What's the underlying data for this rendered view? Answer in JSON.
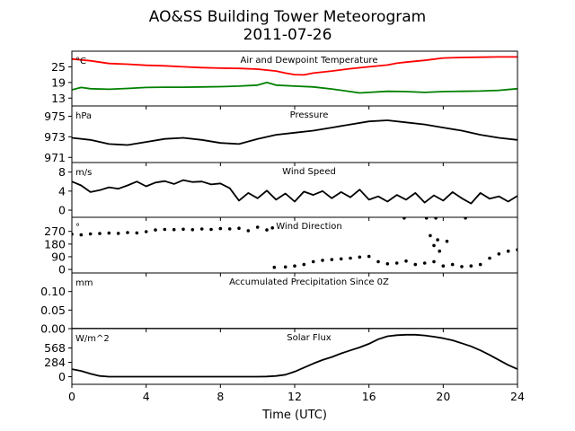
{
  "figure": {
    "title_line1": "AO&SS Building Tower Meteorogram",
    "title_line2": "2011-07-26",
    "xlabel": "Time (UTC)"
  },
  "chart_data": [
    {
      "type": "line",
      "title": "Air and Dewpoint Temperature",
      "unit": "°C",
      "xlim": [
        0,
        24
      ],
      "ylim": [
        10,
        31
      ],
      "yticks": [
        13,
        19,
        25
      ],
      "series": [
        {
          "color": "#ff0000",
          "x": [
            0,
            1,
            2,
            3,
            4,
            5,
            6,
            7,
            8,
            9,
            10,
            11,
            11.5,
            12,
            12.5,
            13,
            14,
            15,
            16,
            17,
            17.5,
            18,
            19,
            20,
            21,
            22,
            23,
            24
          ],
          "values": [
            28.0,
            27.3,
            26.3,
            26.0,
            25.6,
            25.4,
            25.0,
            24.7,
            24.5,
            24.4,
            24.1,
            23.4,
            22.6,
            22.0,
            21.9,
            22.6,
            23.4,
            24.3,
            25.0,
            25.7,
            26.4,
            26.8,
            27.5,
            28.4,
            28.6,
            28.7,
            28.8,
            28.8
          ]
        },
        {
          "color": "#008000",
          "x": [
            0,
            0.5,
            1,
            2,
            3,
            4,
            5,
            6,
            7,
            8,
            9,
            10,
            10.5,
            11,
            12,
            13,
            14,
            15,
            15.5,
            16,
            17,
            18,
            19,
            20,
            21,
            22,
            23,
            23.5,
            24
          ],
          "values": [
            16.2,
            17.1,
            16.6,
            16.4,
            16.7,
            17.1,
            17.2,
            17.2,
            17.3,
            17.4,
            17.6,
            18.0,
            19.0,
            18.0,
            17.6,
            17.3,
            16.5,
            15.5,
            15.0,
            15.2,
            15.6,
            15.5,
            15.2,
            15.5,
            15.6,
            15.7,
            16.0,
            16.3,
            16.6
          ]
        }
      ]
    },
    {
      "type": "line",
      "title": "Pressure",
      "unit": "hPa",
      "xlim": [
        0,
        24
      ],
      "ylim": [
        970.5,
        976.0
      ],
      "yticks": [
        971,
        973,
        975
      ],
      "series": [
        {
          "color": "#000000",
          "x": [
            0,
            1,
            2,
            3,
            4,
            5,
            6,
            7,
            8,
            9,
            10,
            11,
            12,
            13,
            14,
            15,
            16,
            17,
            18,
            19,
            20,
            21,
            22,
            23,
            24
          ],
          "values": [
            972.9,
            972.7,
            972.3,
            972.2,
            972.5,
            972.8,
            972.9,
            972.7,
            972.4,
            972.3,
            972.8,
            973.2,
            973.4,
            973.6,
            973.9,
            974.2,
            974.5,
            974.6,
            974.4,
            974.2,
            973.9,
            973.6,
            973.2,
            972.9,
            972.7
          ]
        }
      ]
    },
    {
      "type": "line",
      "title": "Wind Speed",
      "unit": "m/s",
      "xlim": [
        0,
        24
      ],
      "ylim": [
        -1.5,
        10
      ],
      "yticks": [
        0,
        4,
        8
      ],
      "series": [
        {
          "color": "#000000",
          "x": [
            0,
            0.5,
            1,
            1.5,
            2,
            2.5,
            3,
            3.5,
            4,
            4.5,
            5,
            5.5,
            6,
            6.5,
            7,
            7.5,
            8,
            8.5,
            9,
            9.5,
            10,
            10.5,
            11,
            11.5,
            12,
            12.5,
            13,
            13.5,
            14,
            14.5,
            15,
            15.5,
            16,
            16.5,
            17,
            17.5,
            18,
            18.5,
            19,
            19.5,
            20,
            20.5,
            21,
            21.5,
            22,
            22.5,
            23,
            23.5,
            24
          ],
          "values": [
            6.0,
            5.2,
            3.8,
            4.2,
            4.8,
            4.5,
            5.2,
            6.0,
            5.0,
            5.8,
            6.1,
            5.5,
            6.3,
            5.9,
            6.0,
            5.4,
            5.6,
            4.6,
            2.0,
            3.6,
            2.5,
            4.1,
            2.2,
            3.5,
            1.8,
            3.9,
            3.2,
            4.0,
            2.5,
            3.8,
            2.7,
            4.3,
            2.2,
            2.9,
            1.8,
            3.2,
            2.2,
            3.6,
            1.6,
            3.1,
            2.0,
            3.8,
            2.5,
            1.4,
            3.6,
            2.4,
            2.9,
            1.8,
            3.0
          ]
        }
      ]
    },
    {
      "type": "scatter",
      "title": "Wind Direction",
      "unit": "°",
      "xlim": [
        0,
        24
      ],
      "ylim": [
        -25,
        370
      ],
      "yticks": [
        0,
        90,
        180,
        270
      ],
      "series": [
        {
          "color": "#000000",
          "x": [
            0,
            0.5,
            1,
            1.5,
            2,
            2.5,
            3,
            3.5,
            4,
            4.5,
            5,
            5.5,
            6,
            6.5,
            7,
            7.5,
            8,
            8.5,
            9,
            9.5,
            10,
            10.5,
            10.8
          ],
          "values": [
            250,
            245,
            252,
            255,
            258,
            256,
            262,
            259,
            268,
            280,
            284,
            283,
            285,
            282,
            287,
            284,
            290,
            288,
            292,
            275,
            300,
            280,
            295
          ]
        },
        {
          "color": "#000000",
          "x": [
            10.9,
            11.5,
            12,
            12.5,
            13,
            13.5,
            14,
            14.5,
            15,
            15.5,
            16,
            16.5,
            17,
            17.5,
            18,
            18.5,
            19,
            19.5,
            20,
            20.5,
            21,
            21.5,
            22,
            22.5,
            23,
            23.5,
            24
          ],
          "values": [
            15,
            18,
            25,
            35,
            55,
            65,
            70,
            75,
            80,
            88,
            92,
            55,
            40,
            45,
            60,
            35,
            45,
            55,
            25,
            35,
            20,
            25,
            35,
            80,
            110,
            130,
            140
          ]
        },
        {
          "color": "#000000",
          "x": [
            17.9,
            19.1,
            19.6,
            19.3,
            19.7,
            20.2,
            21.2,
            19.5,
            19.8
          ],
          "values": [
            365,
            365,
            365,
            240,
            210,
            200,
            365,
            170,
            130
          ]
        }
      ]
    },
    {
      "type": "line",
      "title": "Accumulated Precipitation Since 0Z",
      "unit": "mm",
      "xlim": [
        0,
        24
      ],
      "ylim": [
        0,
        0.15
      ],
      "yticks": [
        0.0,
        0.05,
        0.1
      ],
      "ytick_labels": [
        "0.00",
        "0.05",
        "0.10"
      ],
      "series": [
        {
          "color": "#000000",
          "x": [
            0,
            24
          ],
          "values": [
            0.0,
            0.0
          ]
        }
      ]
    },
    {
      "type": "line",
      "title": "Solar Flux",
      "unit": "W/m^2",
      "xlim": [
        0,
        24
      ],
      "ylim": [
        -150,
        950
      ],
      "yticks": [
        0,
        284,
        568
      ],
      "series": [
        {
          "color": "#000000",
          "x": [
            0,
            0.5,
            1,
            1.5,
            2,
            3,
            4,
            5,
            6,
            7,
            8,
            9,
            10,
            10.5,
            11,
            11.5,
            12,
            12.5,
            13,
            13.5,
            14,
            14.5,
            15,
            15.5,
            16,
            16.5,
            17,
            17.5,
            18,
            18.5,
            19,
            19.5,
            20,
            20.5,
            21,
            21.5,
            22,
            22.5,
            23,
            23.5,
            24
          ],
          "values": [
            150,
            115,
            60,
            15,
            0,
            0,
            0,
            0,
            0,
            0,
            0,
            0,
            0,
            5,
            15,
            40,
            100,
            180,
            260,
            330,
            390,
            460,
            520,
            580,
            650,
            740,
            800,
            820,
            830,
            830,
            815,
            790,
            760,
            720,
            660,
            600,
            520,
            430,
            330,
            230,
            150
          ]
        }
      ]
    }
  ]
}
